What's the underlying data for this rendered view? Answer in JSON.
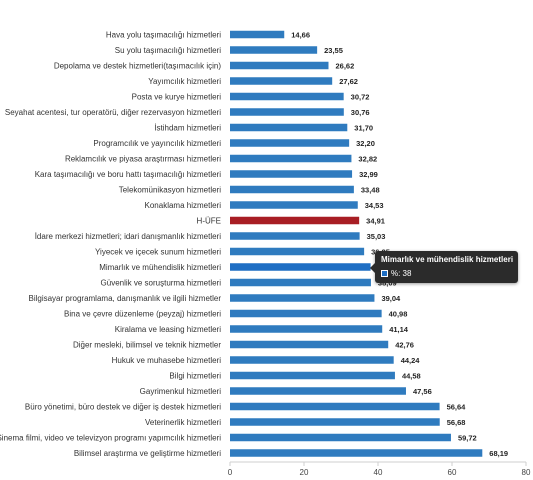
{
  "chart_data": {
    "type": "bar",
    "orientation": "horizontal",
    "categories": [
      "Hava yolu taşımacılığı hizmetleri",
      "Su yolu taşımacılığı hizmetleri",
      "Depolama ve destek hizmetleri(taşımacılık için)",
      "Yayımcılık hizmetleri",
      "Posta ve kurye hizmetleri",
      "Seyahat acentesi, tur operatörü, diğer rezervasyon hizmetleri",
      "İstihdam hizmetleri",
      "Programcılık ve yayıncılık hizmetleri",
      "Reklamcılık ve piyasa araştırması hizmetleri",
      "Kara taşımacılığı ve boru hattı taşımacılığı hizmetleri",
      "Telekomünikasyon hizmetleri",
      "Konaklama hizmetleri",
      "H-ÜFE",
      "İdare merkezi hizmetleri; idari danışmanlık hizmetleri",
      "Yiyecek ve içecek sunum hizmetleri",
      "Mimarlık ve mühendislik hizmetleri",
      "Güvenlik ve soruşturma hizmetleri",
      "Bilgisayar programlama, danışmanlık ve ilgili hizmetler",
      "Bina ve çevre düzenleme (peyzaj) hizmetleri",
      "Kiralama ve leasing hizmetleri",
      "Diğer mesleki, bilimsel ve teknik hizmetler",
      "Hukuk ve muhasebe hizmetleri",
      "Bilgi hizmetleri",
      "Gayrimenkul hizmetleri",
      "Büro yönetimi, büro destek ve diğer iş destek hizmetleri",
      "Veterinerlik hizmetleri",
      "Sinema filmi, video ve televizyon programı yapımcılık hizmetleri",
      "Bilimsel araştırma ve geliştirme hizmetleri"
    ],
    "values": [
      14.66,
      23.55,
      26.62,
      27.62,
      30.72,
      30.76,
      31.7,
      32.2,
      32.82,
      32.99,
      33.48,
      34.53,
      34.91,
      35.03,
      36.25,
      38.0,
      38.09,
      39.04,
      40.98,
      41.14,
      42.76,
      44.24,
      44.58,
      47.56,
      56.64,
      56.68,
      59.72,
      68.19
    ],
    "value_labels": [
      "14,66",
      "23,55",
      "26,62",
      "27,62",
      "30,72",
      "30,76",
      "31,70",
      "32,20",
      "32,82",
      "32,99",
      "33,48",
      "34,53",
      "34,91",
      "35,03",
      "36,25",
      "",
      "38,09",
      "39,04",
      "40,98",
      "41,14",
      "42,76",
      "44,24",
      "44,58",
      "47,56",
      "56,64",
      "56,68",
      "59,72",
      "68,19"
    ],
    "highlight_index": 12,
    "hover_index": 15,
    "xlim": [
      0,
      80
    ],
    "xticks": [
      0,
      20,
      40,
      60,
      80
    ],
    "grid": false,
    "colors": {
      "bar": "#2f7bbf",
      "highlight": "#a81e24",
      "hover": "#1f6fc4"
    }
  },
  "tooltip": {
    "title": "Mimarlık ve mühendislik hizmetleri",
    "row_label": "%: 38"
  }
}
